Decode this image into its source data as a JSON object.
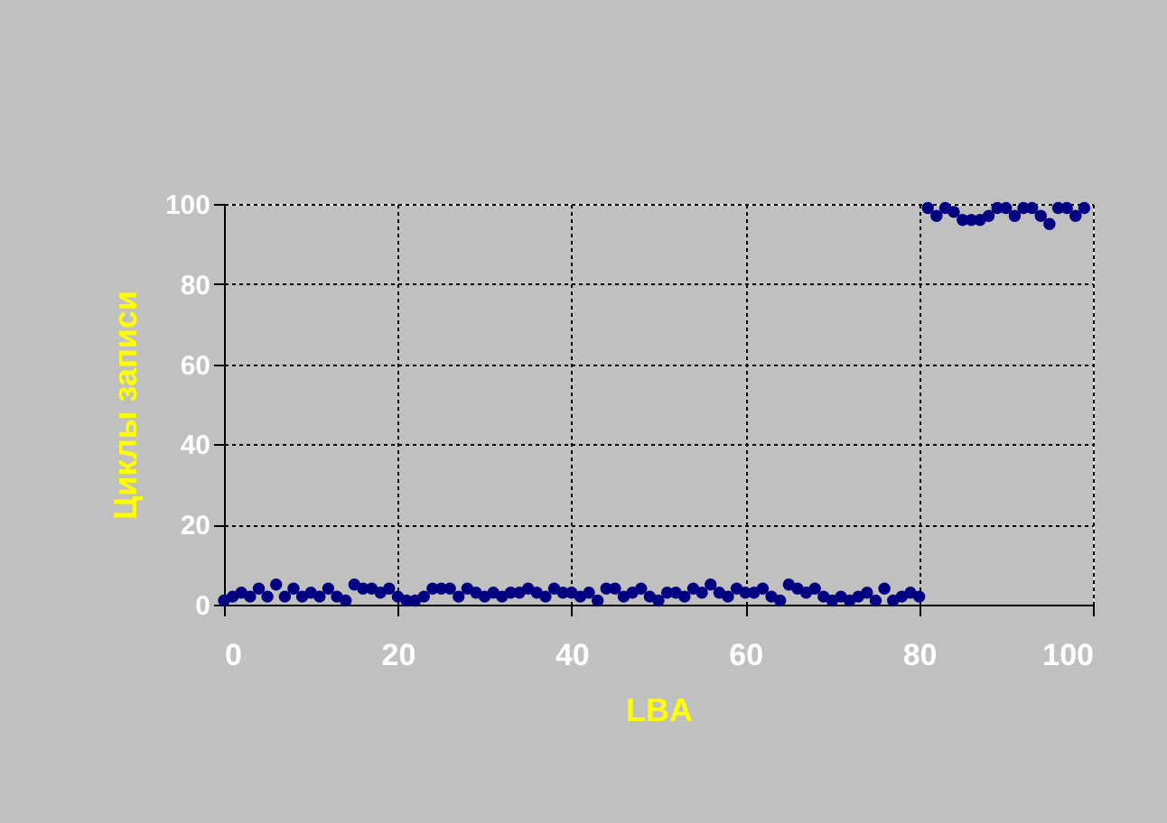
{
  "chart_data": {
    "type": "scatter",
    "xlabel": "LBA",
    "ylabel": "Циклы записи",
    "x": [
      0,
      1,
      2,
      3,
      4,
      5,
      6,
      7,
      8,
      9,
      10,
      11,
      12,
      13,
      14,
      15,
      16,
      17,
      18,
      19,
      20,
      21,
      22,
      23,
      24,
      25,
      26,
      27,
      28,
      29,
      30,
      31,
      32,
      33,
      34,
      35,
      36,
      37,
      38,
      39,
      40,
      41,
      42,
      43,
      44,
      45,
      46,
      47,
      48,
      49,
      50,
      51,
      52,
      53,
      54,
      55,
      56,
      57,
      58,
      59,
      60,
      61,
      62,
      63,
      64,
      65,
      66,
      67,
      68,
      69,
      70,
      71,
      72,
      73,
      74,
      75,
      76,
      77,
      78,
      79,
      80,
      81,
      82,
      83,
      84,
      85,
      86,
      87,
      88,
      89,
      90,
      91,
      92,
      93,
      94,
      95,
      96,
      97,
      98,
      99
    ],
    "series": [
      {
        "color": "#000080",
        "values": [
          1,
          2,
          3,
          2,
          4,
          2,
          5,
          2,
          4,
          2,
          3,
          2,
          4,
          2,
          1,
          5,
          4,
          4,
          3,
          4,
          2,
          1,
          1,
          2,
          4,
          4,
          4,
          2,
          4,
          3,
          2,
          3,
          2,
          3,
          3,
          4,
          3,
          2,
          4,
          3,
          3,
          2,
          3,
          1,
          4,
          4,
          2,
          3,
          4,
          2,
          1,
          3,
          3,
          2,
          4,
          3,
          5,
          3,
          2,
          4,
          3,
          3,
          4,
          2,
          1,
          5,
          4,
          3,
          4,
          2,
          1,
          2,
          1,
          2,
          3,
          1,
          4,
          1,
          2,
          3,
          2,
          99,
          97,
          99,
          98,
          96,
          96,
          96,
          97,
          99,
          99,
          97,
          99,
          99,
          97,
          95,
          99,
          99,
          97,
          99
        ]
      }
    ],
    "xlim": [
      0,
      100
    ],
    "xticks": [
      0,
      20,
      40,
      60,
      80,
      100
    ],
    "ylim": [
      0,
      100
    ],
    "yticks": [
      0,
      20,
      40,
      60,
      80,
      100
    ],
    "grid": true,
    "marker": "circle",
    "legend": false
  }
}
